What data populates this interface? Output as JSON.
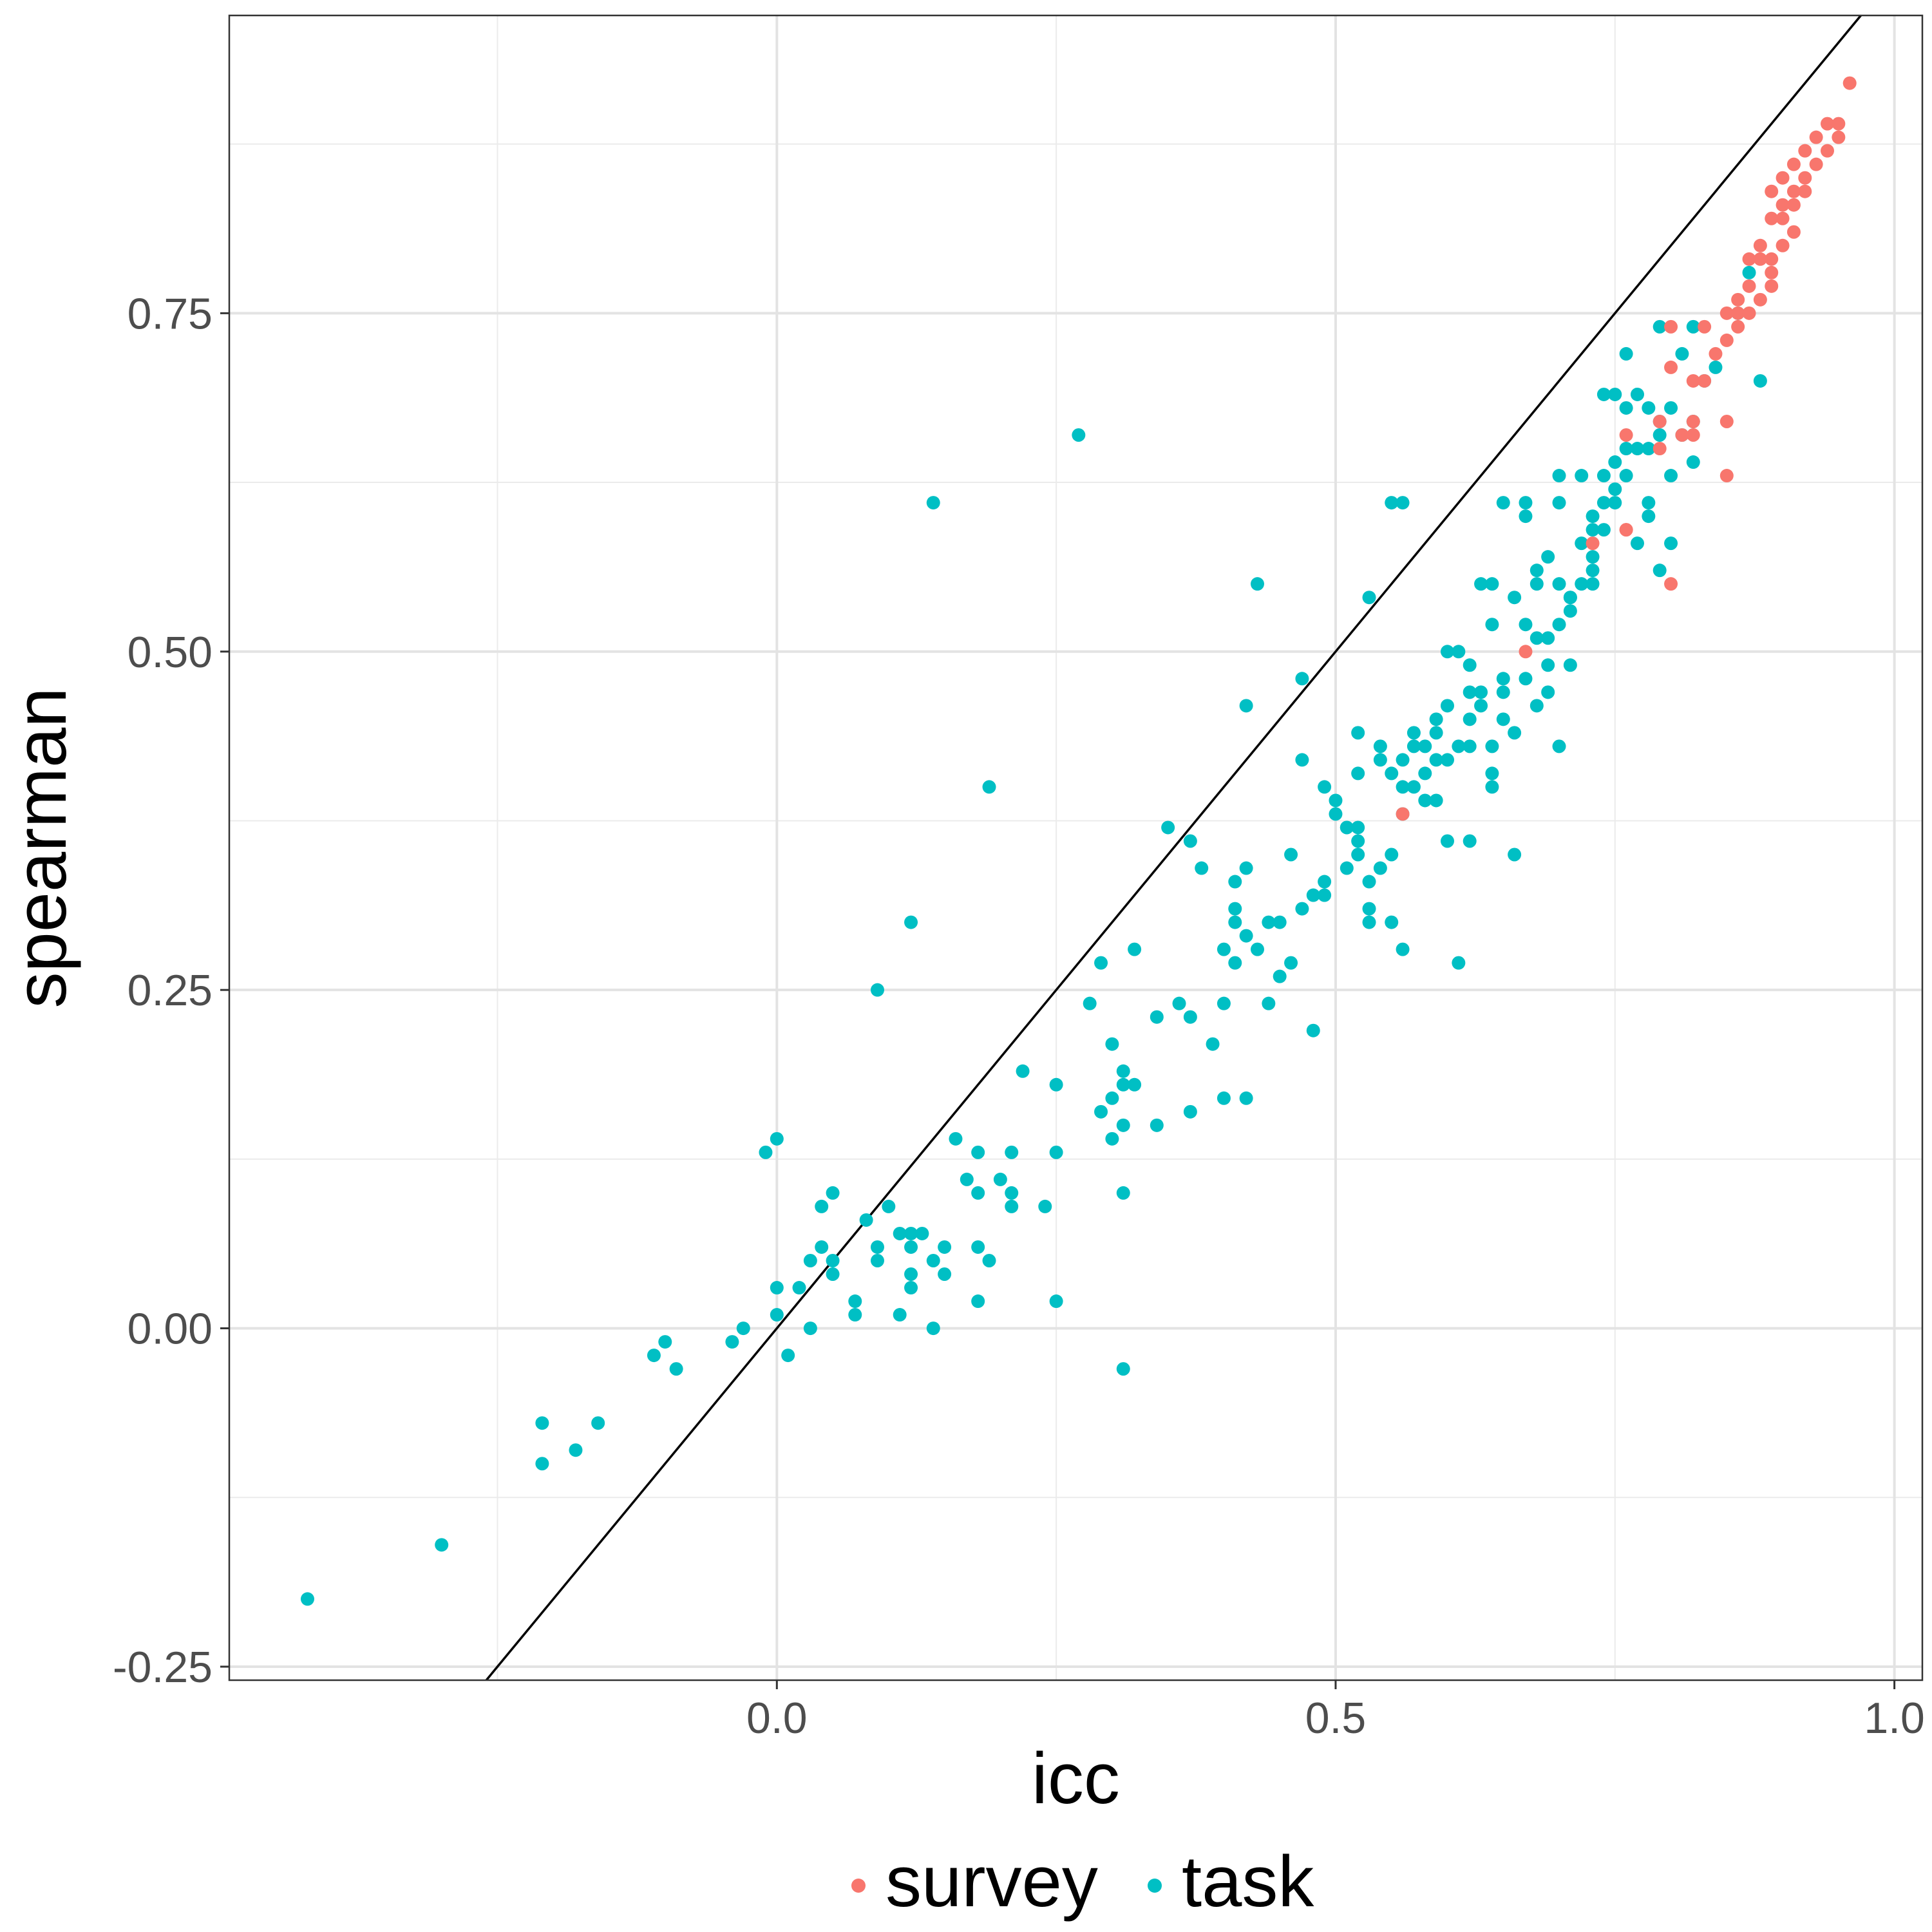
{
  "chart_data": {
    "type": "scatter",
    "title": "",
    "xlabel": "icc",
    "ylabel": "spearman",
    "xlim": [
      -0.49,
      1.025
    ],
    "ylim": [
      -0.26,
      0.97
    ],
    "x_ticks": [
      0.0,
      0.5,
      1.0
    ],
    "x_tick_labels": [
      "0.0",
      "0.5",
      "1.0"
    ],
    "y_ticks": [
      -0.25,
      0.0,
      0.25,
      0.5,
      0.75
    ],
    "y_tick_labels": [
      "-0.25",
      "0.00",
      "0.25",
      "0.50",
      "0.75"
    ],
    "grid": true,
    "legend": "bottom",
    "reference_line": {
      "slope": 1,
      "intercept": 0
    },
    "series": [
      {
        "name": "survey",
        "color": "#F8766D",
        "points": [
          [
            0.96,
            0.92
          ],
          [
            0.95,
            0.89
          ],
          [
            0.95,
            0.88
          ],
          [
            0.94,
            0.89
          ],
          [
            0.94,
            0.87
          ],
          [
            0.93,
            0.88
          ],
          [
            0.93,
            0.86
          ],
          [
            0.92,
            0.87
          ],
          [
            0.92,
            0.85
          ],
          [
            0.91,
            0.86
          ],
          [
            0.91,
            0.84
          ],
          [
            0.9,
            0.85
          ],
          [
            0.9,
            0.83
          ],
          [
            0.89,
            0.84
          ],
          [
            0.92,
            0.84
          ],
          [
            0.91,
            0.83
          ],
          [
            0.9,
            0.82
          ],
          [
            0.89,
            0.82
          ],
          [
            0.91,
            0.81
          ],
          [
            0.9,
            0.8
          ],
          [
            0.89,
            0.79
          ],
          [
            0.88,
            0.8
          ],
          [
            0.89,
            0.78
          ],
          [
            0.88,
            0.79
          ],
          [
            0.87,
            0.79
          ],
          [
            0.87,
            0.77
          ],
          [
            0.89,
            0.77
          ],
          [
            0.88,
            0.76
          ],
          [
            0.86,
            0.76
          ],
          [
            0.86,
            0.75
          ],
          [
            0.85,
            0.75
          ],
          [
            0.87,
            0.75
          ],
          [
            0.86,
            0.74
          ],
          [
            0.85,
            0.73
          ],
          [
            0.84,
            0.72
          ],
          [
            0.83,
            0.74
          ],
          [
            0.8,
            0.74
          ],
          [
            0.83,
            0.7
          ],
          [
            0.82,
            0.7
          ],
          [
            0.8,
            0.71
          ],
          [
            0.79,
            0.67
          ],
          [
            0.82,
            0.67
          ],
          [
            0.81,
            0.66
          ],
          [
            0.82,
            0.66
          ],
          [
            0.79,
            0.65
          ],
          [
            0.85,
            0.67
          ],
          [
            0.85,
            0.63
          ],
          [
            0.76,
            0.66
          ],
          [
            0.76,
            0.59
          ],
          [
            0.8,
            0.55
          ],
          [
            0.67,
            0.5
          ],
          [
            0.56,
            0.38
          ],
          [
            0.73,
            0.58
          ],
          [
            0.76,
            0.59
          ]
        ]
      },
      {
        "name": "task",
        "color": "#00BFC4",
        "points": [
          [
            -0.42,
            -0.2
          ],
          [
            -0.3,
            -0.16
          ],
          [
            -0.21,
            -0.1
          ],
          [
            -0.21,
            -0.07
          ],
          [
            -0.18,
            -0.09
          ],
          [
            -0.16,
            -0.07
          ],
          [
            -0.11,
            -0.02
          ],
          [
            -0.1,
            -0.01
          ],
          [
            -0.09,
            -0.03
          ],
          [
            -0.04,
            -0.01
          ],
          [
            -0.03,
            0.0
          ],
          [
            -0.01,
            0.13
          ],
          [
            0.0,
            0.14
          ],
          [
            0.0,
            0.03
          ],
          [
            0.0,
            0.01
          ],
          [
            0.01,
            -0.02
          ],
          [
            0.02,
            0.03
          ],
          [
            0.03,
            0.0
          ],
          [
            0.03,
            0.05
          ],
          [
            0.04,
            0.09
          ],
          [
            0.04,
            0.06
          ],
          [
            0.05,
            0.1
          ],
          [
            0.05,
            0.04
          ],
          [
            0.05,
            0.05
          ],
          [
            0.07,
            0.01
          ],
          [
            0.07,
            0.02
          ],
          [
            0.08,
            0.08
          ],
          [
            0.09,
            0.06
          ],
          [
            0.09,
            0.05
          ],
          [
            0.1,
            0.09
          ],
          [
            0.11,
            0.07
          ],
          [
            0.11,
            0.01
          ],
          [
            0.12,
            0.07
          ],
          [
            0.12,
            0.06
          ],
          [
            0.12,
            0.03
          ],
          [
            0.12,
            0.04
          ],
          [
            0.13,
            0.07
          ],
          [
            0.14,
            0.0
          ],
          [
            0.14,
            0.05
          ],
          [
            0.15,
            0.06
          ],
          [
            0.15,
            0.04
          ],
          [
            0.16,
            0.14
          ],
          [
            0.17,
            0.11
          ],
          [
            0.18,
            0.13
          ],
          [
            0.18,
            0.1
          ],
          [
            0.18,
            0.06
          ],
          [
            0.19,
            0.05
          ],
          [
            0.18,
            0.02
          ],
          [
            0.2,
            0.11
          ],
          [
            0.21,
            0.1
          ],
          [
            0.21,
            0.09
          ],
          [
            0.21,
            0.13
          ],
          [
            0.22,
            0.19
          ],
          [
            0.24,
            0.09
          ],
          [
            0.25,
            0.13
          ],
          [
            0.25,
            0.18
          ],
          [
            0.25,
            0.02
          ],
          [
            0.14,
            0.61
          ],
          [
            0.12,
            0.3
          ],
          [
            0.09,
            0.25
          ],
          [
            0.19,
            0.4
          ],
          [
            0.27,
            0.66
          ],
          [
            0.28,
            0.24
          ],
          [
            0.29,
            0.27
          ],
          [
            0.29,
            0.16
          ],
          [
            0.3,
            0.17
          ],
          [
            0.3,
            0.21
          ],
          [
            0.3,
            0.14
          ],
          [
            0.31,
            0.15
          ],
          [
            0.31,
            0.19
          ],
          [
            0.31,
            0.18
          ],
          [
            0.31,
            0.1
          ],
          [
            0.31,
            -0.03
          ],
          [
            0.32,
            0.28
          ],
          [
            0.32,
            0.18
          ],
          [
            0.34,
            0.23
          ],
          [
            0.34,
            0.15
          ],
          [
            0.35,
            0.37
          ],
          [
            0.36,
            0.24
          ],
          [
            0.37,
            0.36
          ],
          [
            0.37,
            0.16
          ],
          [
            0.37,
            0.23
          ],
          [
            0.38,
            0.34
          ],
          [
            0.39,
            0.21
          ],
          [
            0.4,
            0.17
          ],
          [
            0.4,
            0.24
          ],
          [
            0.4,
            0.28
          ],
          [
            0.41,
            0.31
          ],
          [
            0.41,
            0.3
          ],
          [
            0.41,
            0.27
          ],
          [
            0.41,
            0.33
          ],
          [
            0.42,
            0.34
          ],
          [
            0.42,
            0.29
          ],
          [
            0.42,
            0.17
          ],
          [
            0.42,
            0.46
          ],
          [
            0.43,
            0.28
          ],
          [
            0.44,
            0.3
          ],
          [
            0.44,
            0.24
          ],
          [
            0.45,
            0.3
          ],
          [
            0.45,
            0.26
          ],
          [
            0.46,
            0.27
          ],
          [
            0.46,
            0.35
          ],
          [
            0.43,
            0.55
          ],
          [
            0.47,
            0.48
          ],
          [
            0.47,
            0.42
          ],
          [
            0.47,
            0.31
          ],
          [
            0.48,
            0.32
          ],
          [
            0.48,
            0.22
          ],
          [
            0.49,
            0.33
          ],
          [
            0.49,
            0.32
          ],
          [
            0.49,
            0.4
          ],
          [
            0.5,
            0.39
          ],
          [
            0.5,
            0.38
          ],
          [
            0.51,
            0.37
          ],
          [
            0.51,
            0.34
          ],
          [
            0.51,
            0.37
          ],
          [
            0.52,
            0.41
          ],
          [
            0.52,
            0.44
          ],
          [
            0.52,
            0.37
          ],
          [
            0.52,
            0.36
          ],
          [
            0.52,
            0.35
          ],
          [
            0.53,
            0.33
          ],
          [
            0.53,
            0.31
          ],
          [
            0.53,
            0.3
          ],
          [
            0.54,
            0.34
          ],
          [
            0.54,
            0.42
          ],
          [
            0.54,
            0.43
          ],
          [
            0.55,
            0.41
          ],
          [
            0.55,
            0.3
          ],
          [
            0.55,
            0.35
          ],
          [
            0.53,
            0.54
          ],
          [
            0.55,
            0.61
          ],
          [
            0.56,
            0.61
          ],
          [
            0.56,
            0.4
          ],
          [
            0.56,
            0.42
          ],
          [
            0.56,
            0.38
          ],
          [
            0.56,
            0.28
          ],
          [
            0.57,
            0.4
          ],
          [
            0.57,
            0.43
          ],
          [
            0.57,
            0.44
          ],
          [
            0.58,
            0.39
          ],
          [
            0.58,
            0.43
          ],
          [
            0.58,
            0.41
          ],
          [
            0.59,
            0.45
          ],
          [
            0.59,
            0.42
          ],
          [
            0.59,
            0.44
          ],
          [
            0.59,
            0.39
          ],
          [
            0.6,
            0.42
          ],
          [
            0.6,
            0.5
          ],
          [
            0.6,
            0.46
          ],
          [
            0.6,
            0.36
          ],
          [
            0.61,
            0.5
          ],
          [
            0.61,
            0.43
          ],
          [
            0.61,
            0.27
          ],
          [
            0.62,
            0.43
          ],
          [
            0.62,
            0.49
          ],
          [
            0.62,
            0.47
          ],
          [
            0.62,
            0.45
          ],
          [
            0.62,
            0.36
          ],
          [
            0.63,
            0.46
          ],
          [
            0.63,
            0.55
          ],
          [
            0.63,
            0.47
          ],
          [
            0.64,
            0.43
          ],
          [
            0.64,
            0.4
          ],
          [
            0.64,
            0.52
          ],
          [
            0.64,
            0.55
          ],
          [
            0.64,
            0.41
          ],
          [
            0.65,
            0.47
          ],
          [
            0.65,
            0.48
          ],
          [
            0.65,
            0.61
          ],
          [
            0.65,
            0.45
          ],
          [
            0.66,
            0.44
          ],
          [
            0.66,
            0.35
          ],
          [
            0.66,
            0.54
          ],
          [
            0.67,
            0.52
          ],
          [
            0.67,
            0.48
          ],
          [
            0.67,
            0.61
          ],
          [
            0.67,
            0.6
          ],
          [
            0.68,
            0.51
          ],
          [
            0.68,
            0.56
          ],
          [
            0.68,
            0.55
          ],
          [
            0.68,
            0.46
          ],
          [
            0.69,
            0.51
          ],
          [
            0.69,
            0.57
          ],
          [
            0.69,
            0.49
          ],
          [
            0.69,
            0.47
          ],
          [
            0.7,
            0.52
          ],
          [
            0.7,
            0.61
          ],
          [
            0.7,
            0.63
          ],
          [
            0.7,
            0.55
          ],
          [
            0.7,
            0.43
          ],
          [
            0.71,
            0.54
          ],
          [
            0.71,
            0.54
          ],
          [
            0.71,
            0.53
          ],
          [
            0.71,
            0.49
          ],
          [
            0.72,
            0.63
          ],
          [
            0.72,
            0.55
          ],
          [
            0.72,
            0.58
          ],
          [
            0.73,
            0.59
          ],
          [
            0.73,
            0.6
          ],
          [
            0.73,
            0.56
          ],
          [
            0.73,
            0.55
          ],
          [
            0.73,
            0.57
          ],
          [
            0.74,
            0.61
          ],
          [
            0.74,
            0.59
          ],
          [
            0.74,
            0.69
          ],
          [
            0.74,
            0.63
          ],
          [
            0.75,
            0.61
          ],
          [
            0.75,
            0.62
          ],
          [
            0.75,
            0.64
          ],
          [
            0.75,
            0.69
          ],
          [
            0.76,
            0.65
          ],
          [
            0.76,
            0.68
          ],
          [
            0.76,
            0.63
          ],
          [
            0.76,
            0.72
          ],
          [
            0.77,
            0.65
          ],
          [
            0.77,
            0.58
          ],
          [
            0.77,
            0.69
          ],
          [
            0.78,
            0.61
          ],
          [
            0.78,
            0.65
          ],
          [
            0.78,
            0.68
          ],
          [
            0.78,
            0.6
          ],
          [
            0.79,
            0.56
          ],
          [
            0.79,
            0.66
          ],
          [
            0.79,
            0.74
          ],
          [
            0.79,
            0.67
          ],
          [
            0.8,
            0.58
          ],
          [
            0.8,
            0.63
          ],
          [
            0.8,
            0.68
          ],
          [
            0.81,
            0.66
          ],
          [
            0.81,
            0.72
          ],
          [
            0.82,
            0.74
          ],
          [
            0.82,
            0.64
          ],
          [
            0.82,
            0.67
          ],
          [
            0.83,
            0.7
          ],
          [
            0.84,
            0.71
          ],
          [
            0.86,
            0.75
          ],
          [
            0.87,
            0.78
          ],
          [
            0.88,
            0.7
          ]
        ]
      }
    ]
  }
}
